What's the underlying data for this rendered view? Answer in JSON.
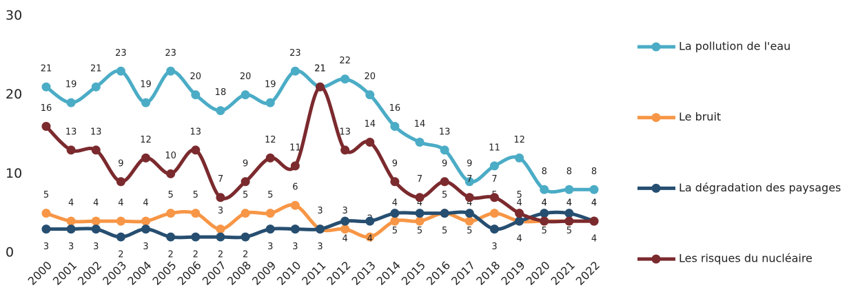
{
  "chart_data": {
    "type": "line",
    "categories": [
      "2000",
      "2001",
      "2002",
      "2003",
      "2004",
      "2005",
      "2006",
      "2007",
      "2008",
      "2009",
      "2010",
      "2011",
      "2012",
      "2013",
      "2014",
      "2015",
      "2016",
      "2017",
      "2018",
      "2019",
      "2020",
      "2021",
      "2022"
    ],
    "series": [
      {
        "name": "La pollution de l'eau",
        "color": "#4bacc6",
        "values": [
          21,
          19,
          21,
          23,
          19,
          23,
          20,
          18,
          20,
          19,
          23,
          21,
          22,
          20,
          16,
          14,
          13,
          9,
          11,
          12,
          8,
          8,
          8
        ]
      },
      {
        "name": "Le bruit",
        "color": "#f79646",
        "values": [
          5,
          4,
          4,
          4,
          4,
          5,
          5,
          3,
          5,
          5,
          6,
          3,
          3,
          2,
          4,
          4,
          5,
          4,
          5,
          4,
          4,
          4,
          4
        ]
      },
      {
        "name": "La dégradation des paysages",
        "color": "#264e70",
        "values": [
          3,
          3,
          3,
          2,
          3,
          2,
          2,
          2,
          2,
          3,
          3,
          3,
          4,
          4,
          5,
          5,
          5,
          5,
          3,
          4,
          5,
          5,
          4
        ]
      },
      {
        "name": "Les risques du nucléaire",
        "color": "#7b2a2e",
        "values": [
          16,
          13,
          13,
          9,
          12,
          10,
          13,
          7,
          9,
          12,
          11,
          21,
          13,
          14,
          9,
          7,
          9,
          7,
          7,
          5,
          4,
          4,
          4
        ]
      }
    ],
    "ylim": [
      0,
      30
    ],
    "yticks": [
      0,
      10,
      20,
      30
    ],
    "grid": false,
    "legend": "right"
  }
}
